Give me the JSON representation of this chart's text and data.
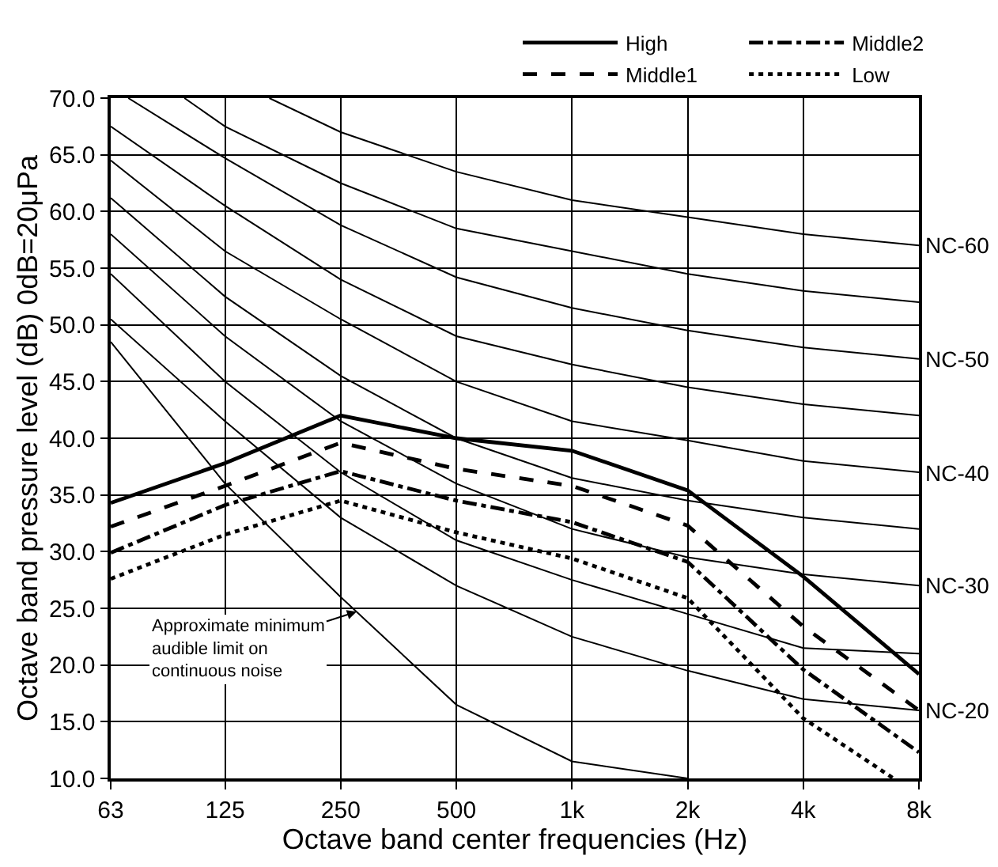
{
  "chart_data": {
    "type": "line",
    "xlabel": "Octave band center frequencies (Hz)",
    "ylabel": "Octave band pressure level (dB) 0dB=20μPa",
    "x": [
      63,
      125,
      250,
      500,
      1000,
      2000,
      4000,
      8000
    ],
    "log": "x",
    "xlim": [
      63,
      8000
    ],
    "xticks": [
      63,
      125,
      250,
      500,
      {
        "value": 1000,
        "label": "1k"
      },
      {
        "value": 2000,
        "label": "2k"
      },
      {
        "value": 4000,
        "label": "4k"
      },
      {
        "value": 8000,
        "label": "8k"
      }
    ],
    "ylim": [
      10,
      70
    ],
    "yticks": [
      {
        "value": 10,
        "label": "10.0"
      },
      {
        "value": 15,
        "label": "15.0"
      },
      {
        "value": 20,
        "label": "20.0"
      },
      {
        "value": 25,
        "label": "25.0"
      },
      {
        "value": 30,
        "label": "30.0"
      },
      {
        "value": 35,
        "label": "35.0"
      },
      {
        "value": 40,
        "label": "40.0"
      },
      {
        "value": 45,
        "label": "45.0"
      },
      {
        "value": 50,
        "label": "50.0"
      },
      {
        "value": 55,
        "label": "55.0"
      },
      {
        "value": 60,
        "label": "60.0"
      },
      {
        "value": 65,
        "label": "65.0"
      },
      {
        "value": 70,
        "label": "70.0"
      }
    ],
    "grid": true,
    "legend": "top right",
    "series": [
      {
        "name": "NC-60",
        "color": "#000000",
        "x": [
          163,
          250,
          500,
          1000,
          2000,
          4000,
          8000
        ],
        "values": [
          70,
          67,
          63.5,
          61,
          59.5,
          58,
          57
        ]
      },
      {
        "color": "#000000",
        "x": [
          98,
          125,
          250,
          500,
          1000,
          2000,
          4000,
          8000
        ],
        "values": [
          70,
          67.5,
          62.5,
          58.5,
          56.5,
          54.5,
          53,
          52
        ]
      },
      {
        "name": "NC-50",
        "color": "#000000",
        "x": [
          70,
          125,
          250,
          500,
          1000,
          2000,
          4000,
          8000
        ],
        "values": [
          70,
          64.7,
          58.8,
          54.2,
          51.5,
          49.5,
          48,
          47
        ]
      },
      {
        "color": "#000000",
        "values": [
          67.5,
          60.5,
          54,
          49,
          46.5,
          44.5,
          43,
          42
        ]
      },
      {
        "name": "NC-40",
        "color": "#000000",
        "values": [
          64.5,
          56.5,
          50.5,
          45,
          41.5,
          39.8,
          38,
          37
        ]
      },
      {
        "color": "#000000",
        "values": [
          61.2,
          52.5,
          45.5,
          40,
          36.5,
          34.5,
          33,
          32
        ]
      },
      {
        "name": "NC-30",
        "color": "#000000",
        "values": [
          58,
          49,
          41.5,
          36,
          32,
          29.5,
          28,
          27
        ]
      },
      {
        "color": "#000000",
        "values": [
          54.5,
          45,
          37,
          31,
          27.5,
          24.5,
          21.5,
          21
        ]
      },
      {
        "name": "NC-20",
        "color": "#000000",
        "values": [
          50.5,
          41.5,
          33,
          27,
          22.5,
          19.5,
          17,
          16
        ]
      },
      {
        "color": "#000000",
        "x": [
          63,
          125,
          250,
          500,
          1000,
          2000
        ],
        "values": [
          48.5,
          36,
          26,
          16.5,
          11.5,
          10
        ]
      },
      {
        "name": "High",
        "color": "#000000",
        "line_style": "solid",
        "values": [
          34.3,
          37.8,
          42,
          40,
          38.9,
          35.4,
          27.8,
          19.2
        ]
      },
      {
        "name": "Middle2",
        "color": "#000000",
        "line_style": "dashdot",
        "values": [
          29.9,
          34.1,
          37.1,
          34.5,
          32.6,
          29.1,
          19.6,
          12.3
        ]
      },
      {
        "name": "Middle1",
        "color": "#000000",
        "line_style": "dashed",
        "values": [
          32.2,
          35.8,
          39.6,
          37.3,
          35.8,
          32.3,
          23.4,
          16
        ]
      },
      {
        "name": "Low",
        "color": "#000000",
        "line_style": "dotted",
        "x": [
          63,
          125,
          250,
          500,
          1000,
          2000,
          4000,
          6870
        ],
        "values": [
          27.6,
          31.5,
          34.5,
          31.7,
          29.4,
          25.9,
          15.3,
          10
        ]
      }
    ],
    "annotations": [
      {
        "text": "Approximate minimum\naudible limit on\ncontinuous noise",
        "x": 275,
        "y": 24.7
      }
    ]
  }
}
